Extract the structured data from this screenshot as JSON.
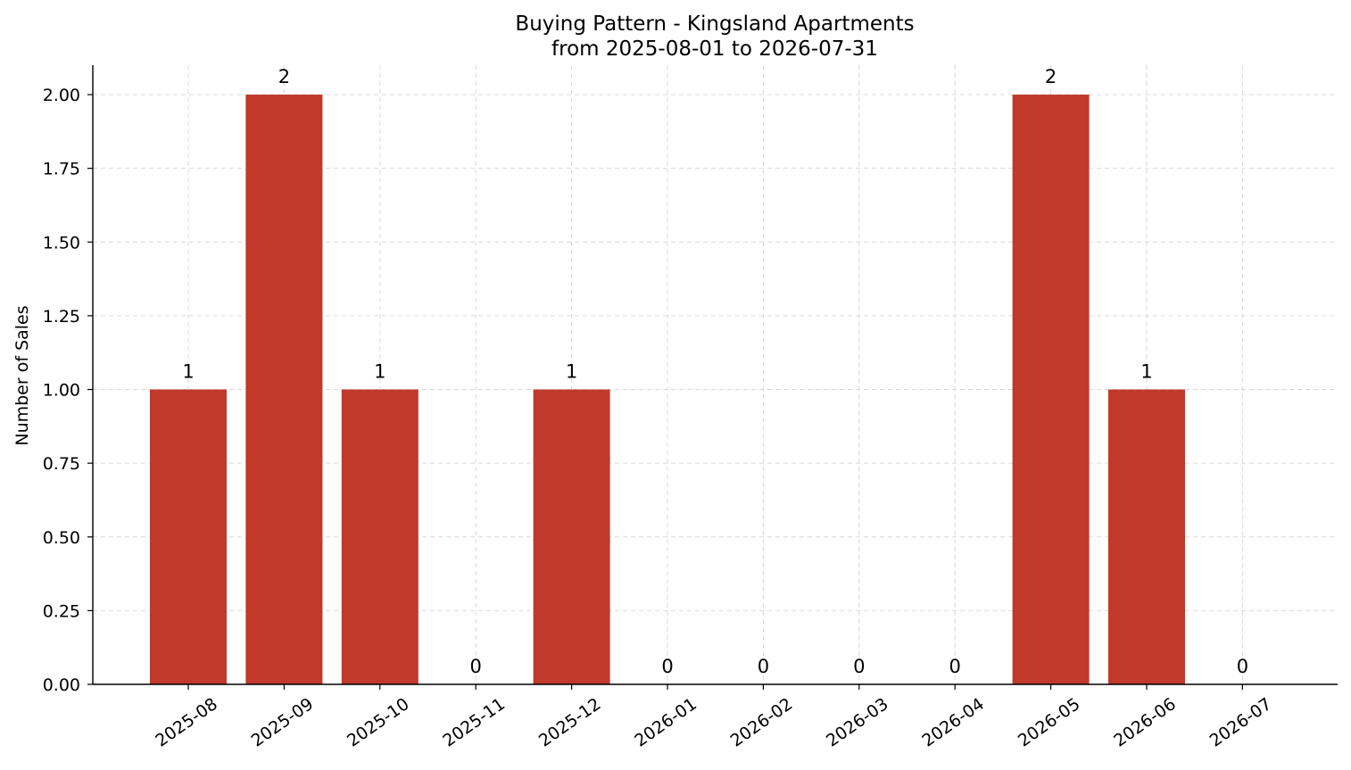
{
  "chart_data": {
    "type": "bar",
    "title": "Buying Pattern - Kingsland Apartments",
    "subtitle": "from 2025-08-01 to 2026-07-31",
    "xlabel": "",
    "ylabel": "Number of Sales",
    "categories": [
      "2025-08",
      "2025-09",
      "2025-10",
      "2025-11",
      "2025-12",
      "2026-01",
      "2026-02",
      "2026-03",
      "2026-04",
      "2026-05",
      "2026-06",
      "2026-07"
    ],
    "values": [
      1,
      2,
      1,
      0,
      1,
      0,
      0,
      0,
      0,
      2,
      1,
      0
    ],
    "data_labels": [
      "1",
      "2",
      "1",
      "0",
      "1",
      "0",
      "0",
      "0",
      "0",
      "2",
      "1",
      "0"
    ],
    "ylim": [
      0,
      2.1
    ],
    "yticks": [
      0,
      0.25,
      0.5,
      0.75,
      1.0,
      1.25,
      1.5,
      1.75,
      2.0
    ],
    "ytick_labels": [
      "0.00",
      "0.25",
      "0.50",
      "0.75",
      "1.00",
      "1.25",
      "1.50",
      "1.75",
      "2.00"
    ],
    "grid": true,
    "bar_color": "#c0392b"
  }
}
